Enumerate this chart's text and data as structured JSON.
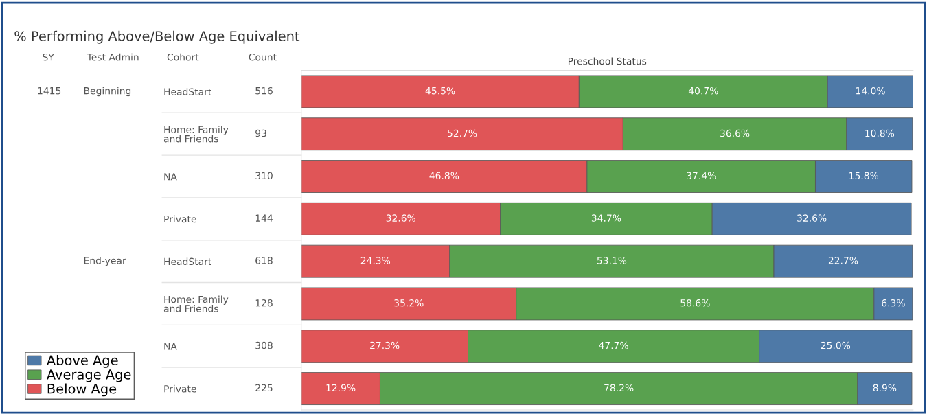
{
  "chart_data": {
    "type": "bar",
    "orientation": "horizontal",
    "stacked": true,
    "title": "% Performing Above/Below Age Equivalent",
    "xlabel": "Preschool Status",
    "categories": [
      "HeadStart",
      "Home: Family\nand Friends",
      "NA",
      "Private",
      "HeadStart",
      "Home: Family\nand Friends",
      "NA",
      "Private"
    ],
    "series": [
      {
        "name": "Below Age",
        "color": "#e05557",
        "values": [
          45.5,
          52.7,
          46.8,
          32.6,
          24.3,
          35.2,
          27.3,
          12.9
        ],
        "value_labels": [
          "45.5%",
          "52.7%",
          "46.8%",
          "32.6%",
          "24.3%",
          "35.2%",
          "27.3%",
          "12.9%"
        ]
      },
      {
        "name": "Average Age",
        "color": "#59a14f",
        "values": [
          40.7,
          36.6,
          37.4,
          34.7,
          53.1,
          58.6,
          47.7,
          78.2
        ],
        "value_labels": [
          "40.7%",
          "36.6%",
          "37.4%",
          "34.7%",
          "53.1%",
          "58.6%",
          "47.7%",
          "78.2%"
        ]
      },
      {
        "name": "Above Age",
        "color": "#4e79a7",
        "values": [
          14.0,
          10.8,
          15.8,
          32.6,
          22.7,
          6.3,
          25.0,
          8.9
        ],
        "value_labels": [
          "14.0%",
          "10.8%",
          "15.8%",
          "32.6%",
          "22.7%",
          "6.3%",
          "25.0%",
          "8.9%"
        ]
      }
    ],
    "annotations": [
      "SY",
      "Test Admin",
      "Cohort",
      "Count",
      "1415",
      "Beginning",
      "End-year",
      "516",
      "93",
      "310",
      "144",
      "618",
      "128",
      "308",
      "225"
    ],
    "legend": "bottom left",
    "tick_labels": "y",
    "grid": false
  }
}
